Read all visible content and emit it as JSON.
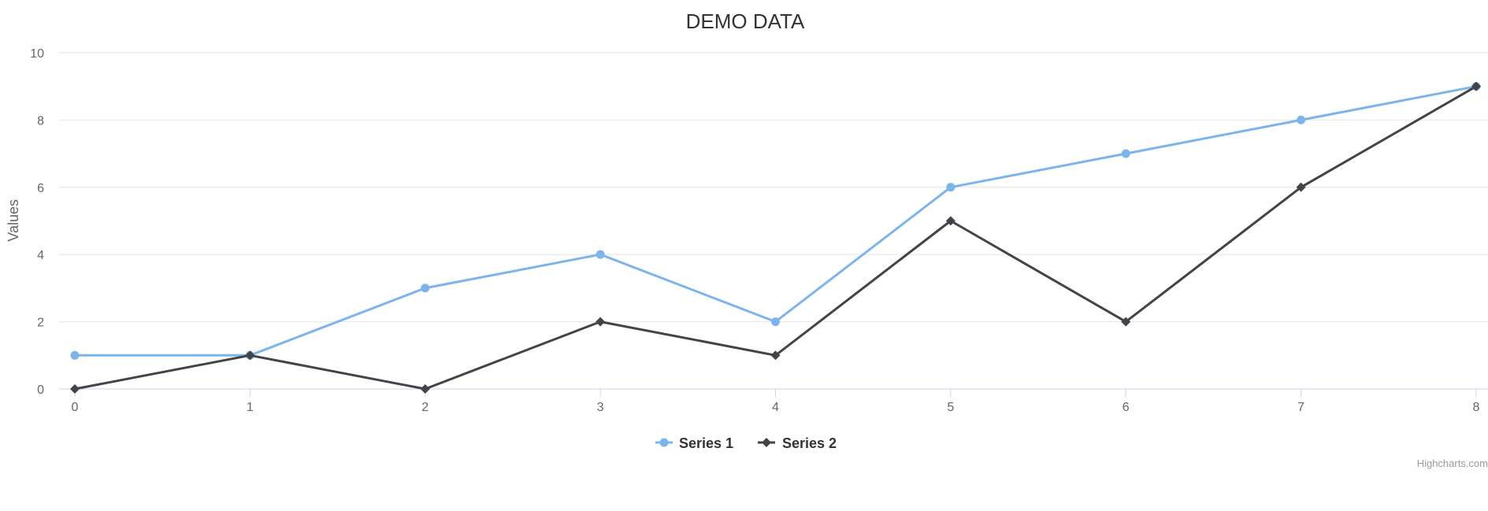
{
  "chart_data": {
    "type": "line",
    "title": "DEMO DATA",
    "xlabel": "",
    "ylabel": "Values",
    "x": [
      0,
      1,
      2,
      3,
      4,
      5,
      6,
      7,
      8
    ],
    "xlim": [
      0,
      8
    ],
    "ylim": [
      0,
      10
    ],
    "yticks": [
      0,
      2,
      4,
      6,
      8,
      10
    ],
    "grid": true,
    "legend_position": "bottom-center",
    "series": [
      {
        "name": "Series 1",
        "values": [
          1,
          1,
          3,
          4,
          2,
          6,
          7,
          8,
          9
        ],
        "color": "#7cb5ec",
        "marker": "circle"
      },
      {
        "name": "Series 2",
        "values": [
          0,
          1,
          0,
          2,
          1,
          5,
          2,
          6,
          9
        ],
        "color": "#434348",
        "marker": "diamond"
      }
    ]
  },
  "credits": "Highcharts.com",
  "colors": {
    "grid": "#e6e6e6",
    "axis": "#ccd6eb"
  }
}
